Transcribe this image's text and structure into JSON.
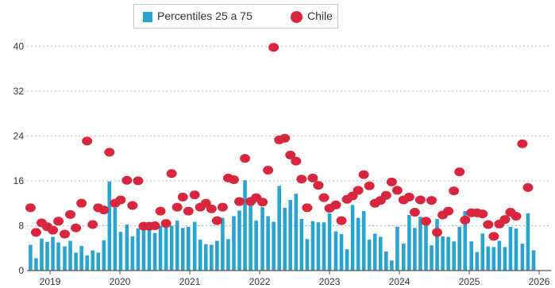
{
  "legend": {
    "bars_label": "Percentiles 25 a 75",
    "dots_label": "Chile"
  },
  "colors": {
    "bar": "#2aa3cf",
    "dot": "#d7263d",
    "grid": "#b9b9b9",
    "axis": "#555555"
  },
  "chart_data": {
    "type": "bar",
    "grid": "horizontal dashed",
    "legend_position": "top-center",
    "ylim": [
      0,
      44
    ],
    "yticks": [
      0,
      8,
      16,
      24,
      32,
      40
    ],
    "xlim": [
      2018.67,
      2026.17
    ],
    "year_ticks": [
      {
        "label": "2019",
        "x": 2019
      },
      {
        "label": "2020",
        "x": 2020
      },
      {
        "label": "2021",
        "x": 2021
      },
      {
        "label": "2022",
        "x": 2022
      },
      {
        "label": "2023",
        "x": 2023
      },
      {
        "label": "2024",
        "x": 2024
      },
      {
        "label": "2025",
        "x": 2025
      },
      {
        "label": "2026",
        "x": 2026
      }
    ],
    "series": [
      {
        "name": "Percentiles 25 a 75",
        "kind": "bar",
        "points": [
          [
            2018.72,
            4.6
          ],
          [
            2018.8,
            2.2
          ],
          [
            2018.88,
            5.7
          ],
          [
            2018.96,
            5.1
          ],
          [
            2019.04,
            6.0
          ],
          [
            2019.12,
            5.0
          ],
          [
            2019.21,
            4.3
          ],
          [
            2019.29,
            5.3
          ],
          [
            2019.37,
            3.2
          ],
          [
            2019.45,
            4.4
          ],
          [
            2019.53,
            2.7
          ],
          [
            2019.61,
            3.6
          ],
          [
            2019.69,
            3.2
          ],
          [
            2019.77,
            5.4
          ],
          [
            2019.85,
            15.9
          ],
          [
            2019.93,
            11.2
          ],
          [
            2020.01,
            6.9
          ],
          [
            2020.1,
            8.2
          ],
          [
            2020.18,
            6.1
          ],
          [
            2020.26,
            7.5
          ],
          [
            2020.34,
            7.9
          ],
          [
            2020.42,
            8.0
          ],
          [
            2020.5,
            6.7
          ],
          [
            2020.58,
            8.0
          ],
          [
            2020.66,
            7.7
          ],
          [
            2020.74,
            8.0
          ],
          [
            2020.82,
            8.9
          ],
          [
            2020.9,
            7.6
          ],
          [
            2020.98,
            7.8
          ],
          [
            2021.07,
            8.7
          ],
          [
            2021.15,
            5.5
          ],
          [
            2021.23,
            4.7
          ],
          [
            2021.31,
            4.6
          ],
          [
            2021.39,
            5.3
          ],
          [
            2021.47,
            9.4
          ],
          [
            2021.55,
            5.6
          ],
          [
            2021.63,
            9.7
          ],
          [
            2021.71,
            10.7
          ],
          [
            2021.79,
            16.1
          ],
          [
            2021.87,
            13.0
          ],
          [
            2021.95,
            8.9
          ],
          [
            2022.04,
            11.3
          ],
          [
            2022.12,
            9.7
          ],
          [
            2022.2,
            8.7
          ],
          [
            2022.28,
            15.1
          ],
          [
            2022.36,
            11.2
          ],
          [
            2022.44,
            12.6
          ],
          [
            2022.52,
            13.7
          ],
          [
            2022.6,
            9.2
          ],
          [
            2022.68,
            5.6
          ],
          [
            2022.76,
            8.8
          ],
          [
            2022.84,
            8.6
          ],
          [
            2022.92,
            8.6
          ],
          [
            2023.0,
            10.2
          ],
          [
            2023.09,
            7.0
          ],
          [
            2023.17,
            6.5
          ],
          [
            2023.25,
            3.8
          ],
          [
            2023.33,
            11.7
          ],
          [
            2023.41,
            9.4
          ],
          [
            2023.49,
            10.6
          ],
          [
            2023.57,
            5.5
          ],
          [
            2023.65,
            6.6
          ],
          [
            2023.73,
            6.0
          ],
          [
            2023.81,
            3.4
          ],
          [
            2023.89,
            1.8
          ],
          [
            2023.97,
            7.8
          ],
          [
            2024.06,
            4.8
          ],
          [
            2024.14,
            9.9
          ],
          [
            2024.22,
            7.6
          ],
          [
            2024.3,
            9.6
          ],
          [
            2024.38,
            8.4
          ],
          [
            2024.46,
            4.5
          ],
          [
            2024.54,
            9.2
          ],
          [
            2024.62,
            6.1
          ],
          [
            2024.7,
            6.0
          ],
          [
            2024.78,
            5.2
          ],
          [
            2024.86,
            7.8
          ],
          [
            2024.94,
            10.6
          ],
          [
            2025.03,
            5.2
          ],
          [
            2025.11,
            3.3
          ],
          [
            2025.19,
            6.6
          ],
          [
            2025.27,
            4.3
          ],
          [
            2025.35,
            4.2
          ],
          [
            2025.43,
            5.3
          ],
          [
            2025.51,
            4.2
          ],
          [
            2025.59,
            7.8
          ],
          [
            2025.67,
            7.5
          ],
          [
            2025.76,
            4.8
          ],
          [
            2025.84,
            10.2
          ],
          [
            2025.92,
            3.6
          ]
        ]
      },
      {
        "name": "Chile",
        "kind": "dot",
        "points": [
          [
            2018.72,
            11.2
          ],
          [
            2018.8,
            6.8
          ],
          [
            2018.88,
            8.5
          ],
          [
            2018.96,
            7.8
          ],
          [
            2019.04,
            7.2
          ],
          [
            2019.12,
            8.8
          ],
          [
            2019.21,
            6.5
          ],
          [
            2019.29,
            10.0
          ],
          [
            2019.37,
            7.6
          ],
          [
            2019.45,
            12.0
          ],
          [
            2019.53,
            23.1
          ],
          [
            2019.61,
            8.2
          ],
          [
            2019.69,
            11.2
          ],
          [
            2019.77,
            10.8
          ],
          [
            2019.85,
            21.1
          ],
          [
            2019.93,
            12.0
          ],
          [
            2020.01,
            12.6
          ],
          [
            2020.1,
            16.1
          ],
          [
            2020.18,
            11.6
          ],
          [
            2020.26,
            16.0
          ],
          [
            2020.34,
            7.9
          ],
          [
            2020.42,
            7.9
          ],
          [
            2020.5,
            8.0
          ],
          [
            2020.58,
            10.6
          ],
          [
            2020.66,
            8.4
          ],
          [
            2020.74,
            17.3
          ],
          [
            2020.82,
            11.3
          ],
          [
            2020.9,
            13.1
          ],
          [
            2020.98,
            10.6
          ],
          [
            2021.07,
            13.5
          ],
          [
            2021.15,
            11.3
          ],
          [
            2021.23,
            12.0
          ],
          [
            2021.31,
            11.0
          ],
          [
            2021.39,
            8.9
          ],
          [
            2021.47,
            11.3
          ],
          [
            2021.55,
            16.5
          ],
          [
            2021.63,
            16.2
          ],
          [
            2021.71,
            12.3
          ],
          [
            2021.79,
            20.0
          ],
          [
            2021.87,
            12.3
          ],
          [
            2021.95,
            13.0
          ],
          [
            2022.04,
            12.2
          ],
          [
            2022.12,
            17.9
          ],
          [
            2022.2,
            39.8
          ],
          [
            2022.28,
            23.3
          ],
          [
            2022.36,
            23.6
          ],
          [
            2022.44,
            20.6
          ],
          [
            2022.52,
            19.5
          ],
          [
            2022.6,
            16.3
          ],
          [
            2022.68,
            11.2
          ],
          [
            2022.76,
            16.5
          ],
          [
            2022.84,
            15.2
          ],
          [
            2022.92,
            13.0
          ],
          [
            2023.0,
            11.1
          ],
          [
            2023.09,
            11.7
          ],
          [
            2023.17,
            8.9
          ],
          [
            2023.25,
            12.7
          ],
          [
            2023.33,
            13.3
          ],
          [
            2023.41,
            14.3
          ],
          [
            2023.49,
            17.1
          ],
          [
            2023.57,
            15.1
          ],
          [
            2023.65,
            12.0
          ],
          [
            2023.73,
            12.5
          ],
          [
            2023.81,
            13.4
          ],
          [
            2023.89,
            15.8
          ],
          [
            2023.97,
            14.3
          ],
          [
            2024.06,
            12.6
          ],
          [
            2024.14,
            13.1
          ],
          [
            2024.22,
            10.4
          ],
          [
            2024.3,
            12.6
          ],
          [
            2024.38,
            8.8
          ],
          [
            2024.46,
            12.5
          ],
          [
            2024.54,
            6.8
          ],
          [
            2024.62,
            9.9
          ],
          [
            2024.7,
            10.6
          ],
          [
            2024.78,
            14.2
          ],
          [
            2024.86,
            17.6
          ],
          [
            2024.94,
            9.0
          ],
          [
            2025.03,
            10.3
          ],
          [
            2025.11,
            10.3
          ],
          [
            2025.19,
            10.1
          ],
          [
            2025.27,
            8.2
          ],
          [
            2025.35,
            6.1
          ],
          [
            2025.43,
            8.3
          ],
          [
            2025.51,
            9.1
          ],
          [
            2025.59,
            10.4
          ],
          [
            2025.67,
            9.7
          ],
          [
            2025.76,
            22.6
          ],
          [
            2025.84,
            14.8
          ]
        ]
      }
    ]
  }
}
